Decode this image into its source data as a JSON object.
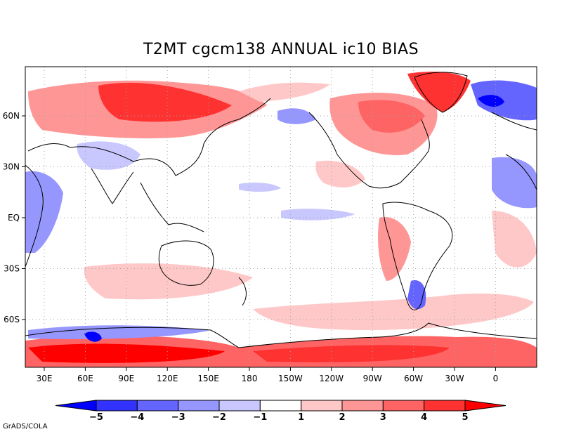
{
  "map": {
    "title": "T2MT cgcm138 ANNUAL ic10 BIAS",
    "x_tick_labels": [
      "30E",
      "60E",
      "90E",
      "120E",
      "150E",
      "180",
      "150W",
      "120W",
      "90W",
      "60W",
      "30W",
      "0"
    ],
    "y_tick_labels": [
      "60N",
      "30N",
      "EQ",
      "30S",
      "60S"
    ],
    "colorbar_labels": [
      "-5",
      "-4",
      "-3",
      "-2",
      "-1",
      "1",
      "2",
      "3",
      "4",
      "5"
    ],
    "colorbar_colors": [
      "#0000ff",
      "#3232ff",
      "#6464ff",
      "#9696ff",
      "#c8c8ff",
      "#ffffff",
      "#ffc8c8",
      "#ff9696",
      "#ff6464",
      "#ff3232",
      "#ff0000"
    ],
    "footer": "GrADS/COLA"
  }
}
